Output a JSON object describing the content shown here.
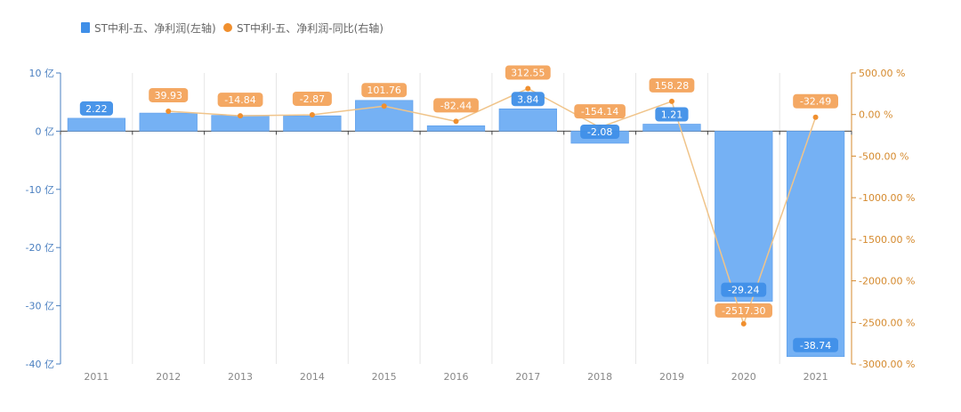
{
  "legend": {
    "bar_label": "ST中利-五、净利润(左轴)",
    "line_label": "ST中利-五、净利润-同比(右轴)"
  },
  "colors": {
    "bar": "#75b1f4",
    "bar_edge": "#5b9ce9",
    "bar_label_bg": "#3f8fe8",
    "line": "#f0c48a",
    "point": "#f08f2e",
    "line_label_bg": "#f3a35b",
    "left_axis": "#4a7fc0",
    "right_axis": "#d58a2e",
    "grid": "#e6e6e6"
  },
  "chart_data": {
    "type": "bar",
    "categories": [
      "2011",
      "2012",
      "2013",
      "2014",
      "2015",
      "2016",
      "2017",
      "2018",
      "2019",
      "2020",
      "2021"
    ],
    "series": [
      {
        "name": "ST中利-五、净利润(左轴)",
        "type": "bar",
        "axis": "left",
        "values": [
          2.22,
          3.11,
          2.72,
          2.64,
          5.29,
          0.93,
          3.84,
          -2.08,
          1.21,
          -29.24,
          -38.74
        ],
        "labels": [
          "2.22",
          "",
          "",
          "",
          "",
          "",
          "3.84",
          "-2.08",
          "1.21",
          "-29.24",
          "-38.74"
        ]
      },
      {
        "name": "ST中利-五、净利润-同比(右轴)",
        "type": "line",
        "axis": "right",
        "values": [
          null,
          39.93,
          -14.84,
          -2.87,
          101.76,
          -82.44,
          312.55,
          -154.14,
          158.28,
          -2517.3,
          -32.49
        ],
        "labels": [
          "",
          "39.93",
          "-14.84",
          "-2.87",
          "101.76",
          "-82.44",
          "312.55",
          "-154.14",
          "158.28",
          "-2517.30",
          "-32.49"
        ]
      }
    ],
    "y_left": {
      "ticks": [
        10,
        0,
        -10,
        -20,
        -30,
        -40
      ],
      "tick_labels": [
        "10 亿",
        "0 亿",
        "-10 亿",
        "-20 亿",
        "-30 亿",
        "-40 亿"
      ],
      "range": [
        -40,
        10
      ]
    },
    "y_right": {
      "ticks": [
        500,
        0,
        -500,
        -1000,
        -1500,
        -2000,
        -2500,
        -3000
      ],
      "tick_labels": [
        "500.00 %",
        "0.00 %",
        "-500.00 %",
        "-1000.00 %",
        "-1500.00 %",
        "-2000.00 %",
        "-2500.00 %",
        "-3000.00 %"
      ],
      "range": [
        -3000,
        500
      ]
    },
    "grid": "vertical",
    "legend_position": "top-left"
  }
}
